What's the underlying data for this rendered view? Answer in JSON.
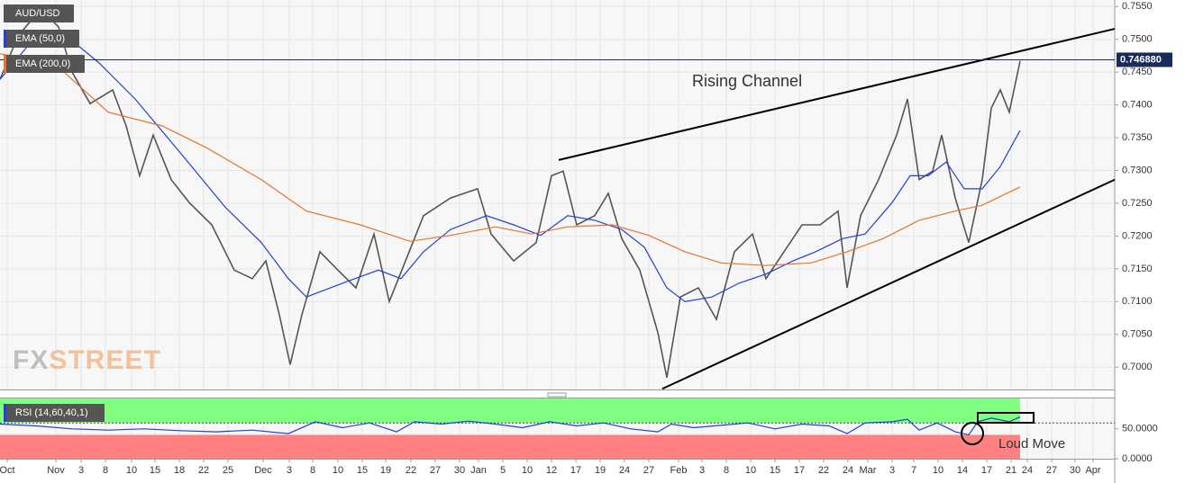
{
  "chart_data": [
    {
      "type": "line",
      "title": "AUD/USD",
      "ylim": [
        0.6966,
        0.756
      ],
      "yticks": [
        {
          "value": 0.755,
          "label": "0.7550"
        },
        {
          "value": 0.75,
          "label": "0.7500"
        },
        {
          "value": 0.745,
          "label": "0.7450"
        },
        {
          "value": 0.74,
          "label": "0.7400"
        },
        {
          "value": 0.735,
          "label": "0.7350"
        },
        {
          "value": 0.73,
          "label": "0.7300"
        },
        {
          "value": 0.725,
          "label": "0.7250"
        },
        {
          "value": 0.72,
          "label": "0.7200"
        },
        {
          "value": 0.715,
          "label": "0.7150"
        },
        {
          "value": 0.71,
          "label": "0.7100"
        },
        {
          "value": 0.705,
          "label": "0.7050"
        },
        {
          "value": 0.7,
          "label": "0.7000"
        }
      ],
      "grid": true,
      "current_price": {
        "value": 0.74688,
        "label": "0.746880"
      },
      "series": [
        {
          "name": "AUD/USD",
          "color": "#555555",
          "x": [
            0,
            4,
            9,
            13,
            16,
            20,
            25,
            28,
            31,
            34,
            38,
            42,
            47,
            52,
            56,
            59,
            62,
            64.4,
            67,
            71,
            75,
            79,
            83,
            86.4,
            90,
            94,
            100,
            106,
            109,
            114,
            119,
            122.4,
            125,
            128,
            132,
            135,
            138,
            142,
            146,
            148,
            151,
            155,
            159,
            163,
            167,
            170,
            174,
            178,
            182,
            186,
            188,
            191,
            195,
            199,
            201.4,
            204,
            207,
            209,
            212,
            215,
            218,
            220,
            222,
            224,
            226.4
          ],
          "values": [
            0.7439,
            0.7505,
            0.7546,
            0.7519,
            0.745,
            0.7402,
            0.7423,
            0.7368,
            0.7292,
            0.7354,
            0.7286,
            0.7251,
            0.7217,
            0.7148,
            0.7135,
            0.7162,
            0.708,
            0.7004,
            0.708,
            0.7176,
            0.7148,
            0.7121,
            0.7203,
            0.71,
            0.7162,
            0.7231,
            0.7258,
            0.7272,
            0.7203,
            0.7162,
            0.719,
            0.7292,
            0.7299,
            0.7217,
            0.7231,
            0.7265,
            0.7196,
            0.7148,
            0.7053,
            0.6984,
            0.7107,
            0.7121,
            0.7073,
            0.7176,
            0.7203,
            0.7135,
            0.7176,
            0.7217,
            0.7217,
            0.7238,
            0.7121,
            0.7231,
            0.7286,
            0.7354,
            0.7409,
            0.7286,
            0.7299,
            0.7354,
            0.7258,
            0.719,
            0.7286,
            0.7395,
            0.7423,
            0.7389,
            0.7467
          ]
        },
        {
          "name": "EMA (50,0)",
          "color": "#1f3fe0",
          "x": [
            0,
            8,
            16,
            22,
            30,
            40,
            50,
            58,
            64,
            68,
            76,
            84,
            89,
            94,
            100,
            108,
            114,
            120,
            126,
            132,
            138,
            143,
            148,
            152,
            158,
            164,
            170,
            176,
            181,
            187,
            192,
            198,
            202,
            206,
            210,
            214,
            218,
            222,
            226.4
          ],
          "values": [
            0.7439,
            0.7505,
            0.7498,
            0.7464,
            0.7409,
            0.7327,
            0.7244,
            0.719,
            0.7135,
            0.7107,
            0.7128,
            0.7148,
            0.7135,
            0.7176,
            0.721,
            0.7231,
            0.7217,
            0.7201,
            0.7231,
            0.7224,
            0.721,
            0.7183,
            0.7121,
            0.71,
            0.7107,
            0.7128,
            0.7142,
            0.7162,
            0.7176,
            0.7196,
            0.7203,
            0.7251,
            0.7292,
            0.7292,
            0.7313,
            0.7272,
            0.7272,
            0.7306,
            0.7361
          ]
        },
        {
          "name": "EMA (200,0)",
          "color": "#e8742a",
          "x": [
            0,
            12,
            24,
            36,
            46,
            58,
            68,
            80,
            91,
            100,
            110,
            118,
            126,
            136,
            144,
            152,
            160,
            170,
            180,
            188,
            196,
            204,
            212,
            218,
            226.4
          ],
          "values": [
            0.7478,
            0.7464,
            0.7389,
            0.7368,
            0.7334,
            0.7286,
            0.7238,
            0.7217,
            0.7192,
            0.7201,
            0.7214,
            0.7203,
            0.7214,
            0.7217,
            0.7201,
            0.7176,
            0.7159,
            0.7155,
            0.7159,
            0.7176,
            0.7196,
            0.7224,
            0.7238,
            0.7247,
            0.7275
          ]
        }
      ],
      "trendlines": [
        {
          "color": "#000000",
          "x": [
            124,
            247.4
          ],
          "values": [
            0.7316,
            0.7516
          ]
        },
        {
          "color": "#000000",
          "x": [
            147,
            247.4
          ],
          "values": [
            0.6967,
            0.7286
          ]
        }
      ],
      "annotation": "Rising Channel",
      "watermark": {
        "first": "FX",
        "second": "STREET"
      }
    },
    {
      "type": "line",
      "title": "RSI (14,60,40,1)",
      "xlim": [
        0,
        247.4
      ],
      "xticks": [
        {
          "value": 1.6,
          "label": "Oct"
        },
        {
          "value": 12.4,
          "label": "Nov"
        },
        {
          "value": 18,
          "label": "3"
        },
        {
          "value": 23.4,
          "label": "8"
        },
        {
          "value": 29.2,
          "label": "10"
        },
        {
          "value": 34.4,
          "label": "15"
        },
        {
          "value": 39.8,
          "label": "18"
        },
        {
          "value": 45.2,
          "label": "22"
        },
        {
          "value": 50.6,
          "label": "25"
        },
        {
          "value": 58.4,
          "label": "Dec"
        },
        {
          "value": 64.2,
          "label": "3"
        },
        {
          "value": 69.4,
          "label": "8"
        },
        {
          "value": 75,
          "label": "10"
        },
        {
          "value": 80.4,
          "label": "15"
        },
        {
          "value": 85.6,
          "label": "19"
        },
        {
          "value": 91.2,
          "label": "22"
        },
        {
          "value": 96.6,
          "label": "27"
        },
        {
          "value": 102,
          "label": "30"
        },
        {
          "value": 106.2,
          "label": "Jan"
        },
        {
          "value": 111.6,
          "label": "5"
        },
        {
          "value": 117,
          "label": "10"
        },
        {
          "value": 122.4,
          "label": "12"
        },
        {
          "value": 127.8,
          "label": "17"
        },
        {
          "value": 133.2,
          "label": "19"
        },
        {
          "value": 138.6,
          "label": "24"
        },
        {
          "value": 144,
          "label": "27"
        },
        {
          "value": 150.6,
          "label": "Feb"
        },
        {
          "value": 155.8,
          "label": "3"
        },
        {
          "value": 161.2,
          "label": "8"
        },
        {
          "value": 166.6,
          "label": "10"
        },
        {
          "value": 172,
          "label": "15"
        },
        {
          "value": 177.4,
          "label": "17"
        },
        {
          "value": 182.8,
          "label": "22"
        },
        {
          "value": 188.2,
          "label": "24"
        },
        {
          "value": 192.6,
          "label": "Mar"
        },
        {
          "value": 198,
          "label": "3"
        },
        {
          "value": 202.8,
          "label": "7"
        },
        {
          "value": 208.2,
          "label": "10"
        },
        {
          "value": 213.6,
          "label": "14"
        },
        {
          "value": 219,
          "label": "17"
        },
        {
          "value": 224.4,
          "label": "21"
        },
        {
          "value": 228,
          "label": "24"
        },
        {
          "value": 233.4,
          "label": "27"
        },
        {
          "value": 238.6,
          "label": "30"
        },
        {
          "value": 242.6,
          "label": "Apr"
        }
      ],
      "ylim": [
        0,
        101
      ],
      "yticks": [
        {
          "value": 50,
          "label": "50.0000"
        },
        {
          "value": 0,
          "label": "0.0000"
        }
      ],
      "upper_level": 60,
      "lower_level": 40,
      "upper_color": "#80ff80",
      "lower_color": "#ff8080",
      "series": [
        {
          "name": "RSI (14,60,40,1)",
          "color": "#1f3fe0",
          "x": [
            0,
            8,
            16,
            24,
            32,
            40,
            48,
            56,
            64,
            70,
            76,
            82,
            88,
            92,
            98,
            104,
            110,
            116,
            122,
            128,
            134,
            140,
            146,
            149,
            154,
            160,
            166,
            172,
            178,
            184,
            188,
            192,
            198,
            201.4,
            204,
            208,
            212,
            215,
            217,
            220,
            224,
            226.4
          ],
          "values": [
            58,
            55,
            50,
            48,
            50,
            47,
            45,
            48,
            42,
            62,
            52,
            60,
            45,
            62,
            58,
            63,
            58,
            52,
            62,
            55,
            60,
            50,
            45,
            58,
            52,
            56,
            60,
            50,
            58,
            55,
            42,
            60,
            62,
            66,
            48,
            60,
            45,
            40,
            62,
            68,
            62,
            70
          ]
        }
      ],
      "annotation": "Loud Move"
    }
  ]
}
